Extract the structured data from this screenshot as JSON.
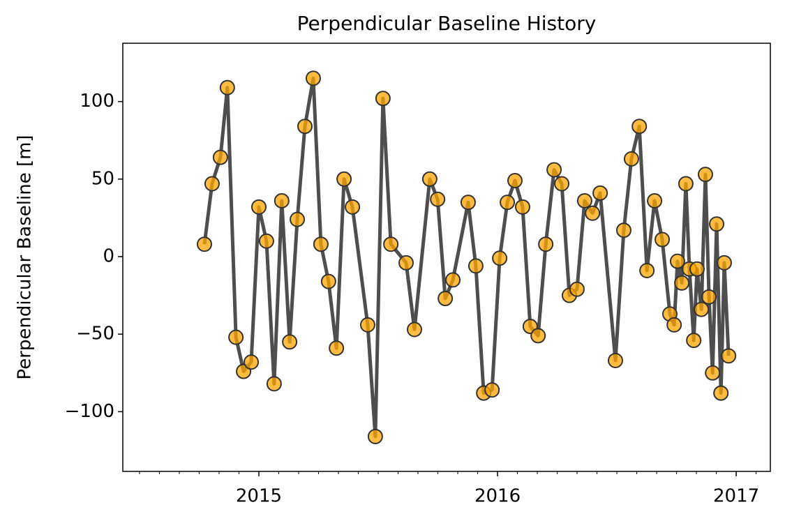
{
  "chart_data": {
    "type": "line",
    "title": "Perpendicular Baseline History",
    "ylabel": "Perpendicular Baseline [m]",
    "x": [
      2014.772,
      2014.804,
      2014.839,
      2014.868,
      2014.904,
      2014.936,
      2014.968,
      2015.0,
      2015.032,
      2015.064,
      2015.096,
      2015.129,
      2015.161,
      2015.193,
      2015.228,
      2015.26,
      2015.292,
      2015.325,
      2015.357,
      2015.392,
      2015.456,
      2015.488,
      2015.52,
      2015.553,
      2015.617,
      2015.652,
      2015.716,
      2015.749,
      2015.781,
      2015.813,
      2015.877,
      2015.909,
      2015.942,
      2015.977,
      2016.009,
      2016.041,
      2016.073,
      2016.105,
      2016.137,
      2016.17,
      2016.202,
      2016.237,
      2016.269,
      2016.301,
      2016.333,
      2016.365,
      2016.398,
      2016.43,
      2016.494,
      2016.529,
      2016.561,
      2016.594,
      2016.626,
      2016.658,
      2016.69,
      2016.722,
      2016.74,
      2016.754,
      2016.772,
      2016.789,
      2016.804,
      2016.822,
      2016.836,
      2016.854,
      2016.871,
      2016.886,
      2016.901,
      2016.918,
      2016.936,
      2016.95,
      2016.968
    ],
    "values": [
      8,
      47,
      64,
      109,
      -52,
      -74,
      -68,
      32,
      10,
      -82,
      36,
      -55,
      24,
      84,
      115,
      8,
      -16,
      -59,
      50,
      32,
      -44,
      -116,
      102,
      8,
      -4,
      -47,
      50,
      37,
      -27,
      -15,
      35,
      -6,
      -88,
      -86,
      -1,
      35,
      49,
      32,
      -45,
      -51,
      8,
      56,
      47,
      -25,
      -21,
      36,
      28,
      41,
      -67,
      17,
      63,
      84,
      -9,
      36,
      11,
      -37,
      -44,
      -3,
      -17,
      47,
      -8,
      -54,
      -8,
      -34,
      53,
      -26,
      -75,
      21,
      -88,
      -4,
      -64
    ],
    "color": "#444444",
    "marker_color": "#ffa500",
    "xlim": [
      2014.43,
      2017.143
    ],
    "xticks": [
      2015,
      2016,
      2017
    ],
    "ylim": [
      -138.5,
      137.6
    ],
    "yticks": [
      {
        "value": -100,
        "label": "−100"
      },
      {
        "value": -50,
        "label": "−50"
      },
      0,
      50,
      100
    ],
    "grid": false
  }
}
